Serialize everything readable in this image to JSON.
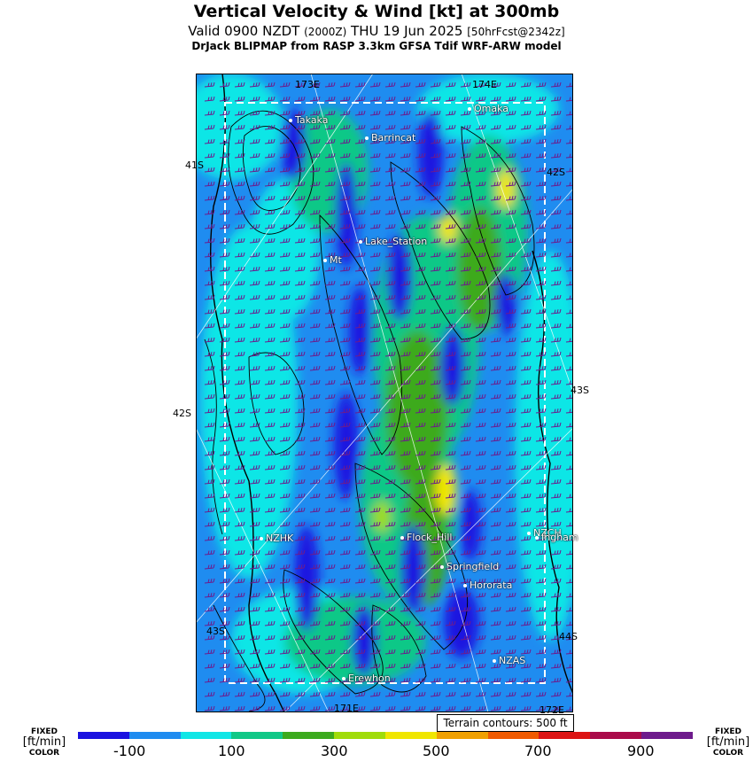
{
  "header": {
    "title": "Vertical Velocity & Wind [kt] at 300mb",
    "valid_main": "Valid 0900 NZDT",
    "valid_utc": "(2000Z)",
    "valid_date": "THU 19 Jun 2025",
    "forecast": "[50hrFcst@2342z]",
    "subtitle": "DrJack BLIPMAP from RASP 3.3km GFSA Tdif WRF-ARW model"
  },
  "map": {
    "grid_labels": [
      "173E",
      "174E",
      "41S",
      "42S",
      "42S",
      "43S",
      "43S",
      "44S",
      "171E",
      "172E"
    ],
    "places": [
      "Takaka",
      "Barrincat",
      "Omaka",
      "Lake_Station",
      "Mt",
      "NZHK",
      "Flock_Hill",
      "NZCH",
      "Ingham",
      "Springfield",
      "Hororata",
      "NZAS",
      "Erewhon"
    ]
  },
  "legend": {
    "terrain_note": "Terrain contours: 500 ft",
    "fixed_label": "FIXED",
    "units": "[ft/min]",
    "color_label": "COLOR",
    "ticks": [
      "-100",
      "100",
      "300",
      "500",
      "700",
      "900"
    ],
    "colors": [
      "#1a12e0",
      "#1f8cf0",
      "#10e6e6",
      "#10c887",
      "#3caa1e",
      "#a0dc0a",
      "#f0e600",
      "#f0a000",
      "#f05a00",
      "#dc1414",
      "#aa0a4a",
      "#6e1a8c"
    ]
  }
}
